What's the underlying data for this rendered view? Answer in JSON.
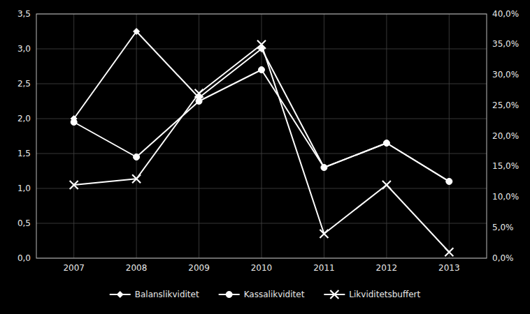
{
  "chart_data": {
    "type": "line",
    "x": [
      2007,
      2008,
      2009,
      2010,
      2011,
      2012,
      2013
    ],
    "xlim": [
      2006.4,
      2013.6
    ],
    "xticks": [
      2007,
      2008,
      2009,
      2010,
      2011,
      2012,
      2013
    ],
    "ylim": [
      0,
      3.5
    ],
    "yticks": [
      {
        "value": 0.0,
        "label": "0,0"
      },
      {
        "value": 0.5,
        "label": "0,5"
      },
      {
        "value": 1.0,
        "label": "1,0"
      },
      {
        "value": 1.5,
        "label": "1,5"
      },
      {
        "value": 2.0,
        "label": "2,0"
      },
      {
        "value": 2.5,
        "label": "2,5"
      },
      {
        "value": 3.0,
        "label": "3,0"
      },
      {
        "value": 3.5,
        "label": "3,5"
      }
    ],
    "y2lim": [
      0,
      0.4
    ],
    "y2ticks": [
      {
        "value": 0.0,
        "label": "0,0%"
      },
      {
        "value": 0.05,
        "label": "5,0%"
      },
      {
        "value": 0.1,
        "label": "10,0%"
      },
      {
        "value": 0.15,
        "label": "15,0%"
      },
      {
        "value": 0.2,
        "label": "20,0%"
      },
      {
        "value": 0.25,
        "label": "25,0%"
      },
      {
        "value": 0.3,
        "label": "30,0%"
      },
      {
        "value": 0.35,
        "label": "35,0%"
      },
      {
        "value": 0.4,
        "label": "40,0%"
      }
    ],
    "grid": true,
    "legend": "bottom",
    "series": [
      {
        "name": "Balanslikviditet",
        "color": "#ffffff",
        "marker": "diamond",
        "values": [
          2.0,
          3.25,
          2.3,
          3.0,
          1.3,
          1.65,
          1.1
        ]
      },
      {
        "name": "Kassalikviditet",
        "color": "#ffffff",
        "marker": "circle",
        "values": [
          1.95,
          1.45,
          2.25,
          2.7,
          1.3,
          1.65,
          1.1
        ]
      },
      {
        "name": "Likviditetsbuffert",
        "color": "#ffffff",
        "marker": "x",
        "axis": "y2",
        "values": [
          0.12,
          0.13,
          0.27,
          0.35,
          0.04,
          0.12,
          0.01
        ]
      }
    ]
  }
}
